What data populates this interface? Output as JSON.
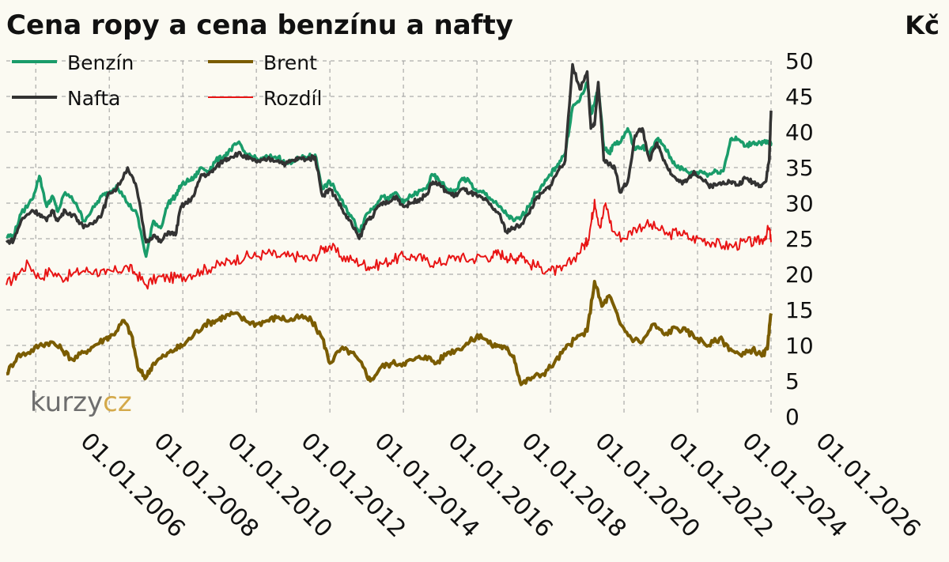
{
  "chart_data": {
    "type": "line",
    "title": "Cena ropy a cena benzínu a nafty",
    "ylabel": "Kč",
    "ylim": [
      0,
      50
    ],
    "yticks": [
      0,
      5,
      10,
      15,
      20,
      25,
      30,
      35,
      40,
      45,
      50
    ],
    "x_range": [
      2004.2,
      2025.0
    ],
    "xticks": [
      "01.01.2006",
      "01.01.2008",
      "01.01.2010",
      "01.01.2012",
      "01.01.2014",
      "01.01.2016",
      "01.01.2018",
      "01.01.2020",
      "01.01.2022",
      "01.01.2024",
      "01.01.2026"
    ],
    "grid": true,
    "legend_position": "top-left",
    "colors": {
      "Benzín": "#1a9c6a",
      "Nafta": "#333333",
      "Brent": "#7a5c00",
      "Rozdíl": "#e81414"
    },
    "series": [
      {
        "name": "Benzín",
        "x": [
          2004.2,
          2004.4,
          2004.6,
          2004.9,
          2005.1,
          2005.3,
          2005.45,
          2005.6,
          2005.8,
          2006.1,
          2006.3,
          2006.6,
          2006.8,
          2007.0,
          2007.2,
          2007.5,
          2007.75,
          2008.0,
          2008.2,
          2008.4,
          2008.6,
          2008.8,
          2008.95,
          2009.1,
          2009.3,
          2009.5,
          2009.7,
          2009.9,
          2010.1,
          2010.3,
          2010.5,
          2010.7,
          2010.9,
          2011.1,
          2011.3,
          2011.6,
          2011.8,
          2012.0,
          2012.2,
          2012.4,
          2012.6,
          2012.8,
          2013.0,
          2013.2,
          2013.4,
          2013.6,
          2013.8,
          2014.0,
          2014.2,
          2014.4,
          2014.6,
          2014.8,
          2015.0,
          2015.2,
          2015.4,
          2015.6,
          2015.8,
          2016.0,
          2016.2,
          2016.4,
          2016.6,
          2016.8,
          2017.0,
          2017.2,
          2017.4,
          2017.6,
          2017.8,
          2018.0,
          2018.2,
          2018.4,
          2018.6,
          2018.8,
          2019.0,
          2019.2,
          2019.4,
          2019.6,
          2019.8,
          2020.0,
          2020.1,
          2020.2,
          2020.3,
          2020.45,
          2020.6,
          2020.75,
          2020.9,
          2021.1,
          2021.3,
          2021.5,
          2021.7,
          2021.9,
          2022.1,
          2022.3,
          2022.5,
          2022.7,
          2022.9,
          2023.1,
          2023.3,
          2023.5,
          2023.7,
          2023.9,
          2024.1,
          2024.3,
          2024.5,
          2024.7,
          2024.85,
          2024.95,
          2025.0
        ],
        "y": [
          25.3,
          25.5,
          28.5,
          30.5,
          33.8,
          29.5,
          31.0,
          28.8,
          31.5,
          30.0,
          27.5,
          29.5,
          31.0,
          31.5,
          32.5,
          30.0,
          28.5,
          22.5,
          27.5,
          26.5,
          30.0,
          31.0,
          32.5,
          33.0,
          33.5,
          35.0,
          34.5,
          36.0,
          36.5,
          37.5,
          38.5,
          37.0,
          36.5,
          36.0,
          36.5,
          36.5,
          35.5,
          36.0,
          36.3,
          36.5,
          36.8,
          32.0,
          33.0,
          31.5,
          29.5,
          28.0,
          26.0,
          28.5,
          29.5,
          31.0,
          30.5,
          31.5,
          30.0,
          31.0,
          31.5,
          32.0,
          34.0,
          33.0,
          32.0,
          31.5,
          33.5,
          33.0,
          31.5,
          31.5,
          30.5,
          29.5,
          28.5,
          27.5,
          28.0,
          29.5,
          31.5,
          32.5,
          34.0,
          35.5,
          37.0,
          43.5,
          44.5,
          47.0,
          42.5,
          44.0,
          46.5,
          38.0,
          37.0,
          38.5,
          38.5,
          40.5,
          37.5,
          38.0,
          37.0,
          39.0,
          38.0,
          36.0,
          35.0,
          34.5,
          34.0,
          34.5,
          34.0,
          34.5,
          34.5,
          39.0,
          39.0,
          38.0,
          38.5,
          38.5,
          38.5,
          38.5,
          38.5
        ]
      },
      {
        "name": "Nafta",
        "x": [
          2004.2,
          2004.4,
          2004.6,
          2004.9,
          2005.1,
          2005.3,
          2005.45,
          2005.6,
          2005.8,
          2006.1,
          2006.3,
          2006.6,
          2006.8,
          2007.0,
          2007.2,
          2007.5,
          2007.75,
          2008.0,
          2008.2,
          2008.4,
          2008.6,
          2008.8,
          2008.95,
          2009.1,
          2009.3,
          2009.5,
          2009.7,
          2009.9,
          2010.1,
          2010.3,
          2010.5,
          2010.7,
          2010.9,
          2011.1,
          2011.3,
          2011.6,
          2011.8,
          2012.0,
          2012.2,
          2012.4,
          2012.6,
          2012.8,
          2013.0,
          2013.2,
          2013.4,
          2013.6,
          2013.8,
          2014.0,
          2014.2,
          2014.4,
          2014.6,
          2014.8,
          2015.0,
          2015.2,
          2015.4,
          2015.6,
          2015.8,
          2016.0,
          2016.2,
          2016.4,
          2016.6,
          2016.8,
          2017.0,
          2017.2,
          2017.4,
          2017.6,
          2017.8,
          2018.0,
          2018.2,
          2018.4,
          2018.6,
          2018.8,
          2019.0,
          2019.2,
          2019.4,
          2019.6,
          2019.8,
          2020.0,
          2020.1,
          2020.2,
          2020.3,
          2020.45,
          2020.6,
          2020.75,
          2020.9,
          2021.1,
          2021.3,
          2021.5,
          2021.7,
          2021.9,
          2022.1,
          2022.3,
          2022.5,
          2022.7,
          2022.9,
          2023.1,
          2023.3,
          2023.5,
          2023.7,
          2023.9,
          2024.1,
          2024.3,
          2024.5,
          2024.7,
          2024.85,
          2024.95,
          2025.0
        ],
        "y": [
          24.5,
          24.8,
          27.5,
          29.0,
          28.5,
          27.5,
          29.0,
          27.5,
          29.0,
          28.0,
          26.5,
          27.5,
          28.5,
          31.5,
          32.0,
          35.0,
          32.0,
          24.5,
          25.5,
          24.5,
          26.0,
          25.5,
          29.5,
          30.0,
          31.0,
          34.0,
          34.0,
          35.0,
          36.0,
          36.5,
          37.0,
          36.5,
          36.0,
          35.8,
          36.2,
          36.0,
          35.5,
          36.0,
          36.3,
          36.2,
          36.5,
          31.0,
          32.0,
          30.5,
          28.5,
          27.0,
          25.0,
          27.5,
          28.5,
          30.0,
          30.0,
          31.0,
          29.5,
          30.0,
          30.5,
          31.0,
          33.0,
          32.5,
          31.5,
          31.0,
          32.0,
          31.5,
          31.0,
          30.5,
          29.5,
          28.5,
          26.0,
          26.5,
          27.0,
          28.5,
          30.5,
          31.5,
          32.5,
          34.5,
          36.0,
          49.5,
          46.0,
          48.5,
          40.5,
          41.0,
          47.0,
          36.0,
          35.5,
          35.0,
          31.5,
          33.0,
          39.5,
          40.5,
          36.0,
          38.5,
          36.0,
          34.0,
          33.0,
          33.0,
          34.5,
          33.5,
          32.5,
          32.5,
          33.0,
          33.0,
          32.5,
          33.5,
          33.0,
          32.5,
          33.0,
          36.0,
          43.0
        ]
      },
      {
        "name": "Brent",
        "x": [
          2004.2,
          2004.5,
          2004.8,
          2005.1,
          2005.4,
          2005.7,
          2006.0,
          2006.3,
          2006.6,
          2006.9,
          2007.1,
          2007.4,
          2007.6,
          2007.8,
          2008.0,
          2008.2,
          2008.5,
          2008.8,
          2009.0,
          2009.3,
          2009.6,
          2009.9,
          2010.1,
          2010.4,
          2010.7,
          2011.0,
          2011.3,
          2011.6,
          2011.9,
          2012.2,
          2012.5,
          2012.8,
          2013.0,
          2013.3,
          2013.6,
          2013.9,
          2014.1,
          2014.4,
          2014.7,
          2015.0,
          2015.3,
          2015.6,
          2015.9,
          2016.2,
          2016.5,
          2016.8,
          2017.1,
          2017.4,
          2017.6,
          2017.8,
          2018.0,
          2018.2,
          2018.5,
          2018.8,
          2019.1,
          2019.4,
          2019.7,
          2020.0,
          2020.2,
          2020.4,
          2020.6,
          2020.9,
          2021.2,
          2021.5,
          2021.8,
          2022.1,
          2022.4,
          2022.7,
          2023.0,
          2023.3,
          2023.6,
          2023.9,
          2024.2,
          2024.5,
          2024.75,
          2024.9,
          2025.0
        ],
        "y": [
          6.0,
          8.5,
          9.0,
          10.0,
          10.5,
          9.5,
          8.0,
          9.0,
          10.0,
          11.0,
          11.5,
          13.5,
          11.5,
          6.5,
          5.5,
          7.5,
          8.5,
          9.5,
          10.0,
          11.5,
          13.0,
          13.5,
          14.0,
          14.5,
          13.5,
          13.0,
          13.5,
          14.0,
          13.5,
          14.0,
          13.5,
          11.0,
          7.5,
          9.5,
          9.0,
          7.0,
          5.0,
          7.0,
          7.5,
          7.5,
          8.0,
          8.5,
          7.5,
          9.0,
          9.5,
          10.5,
          11.5,
          10.0,
          10.0,
          9.5,
          8.5,
          4.5,
          5.5,
          6.0,
          7.5,
          9.5,
          11.0,
          12.0,
          19.0,
          15.5,
          17.0,
          13.0,
          11.0,
          10.5,
          13.0,
          11.5,
          12.5,
          12.0,
          11.0,
          10.0,
          11.0,
          9.5,
          8.5,
          9.5,
          8.5,
          9.5,
          14.5
        ]
      },
      {
        "name": "Rozdíl",
        "x": [
          2004.2,
          2004.5,
          2004.8,
          2005.1,
          2005.4,
          2005.7,
          2006.0,
          2006.3,
          2006.6,
          2006.9,
          2007.2,
          2007.5,
          2007.75,
          2008.0,
          2008.3,
          2008.6,
          2008.9,
          2009.2,
          2009.5,
          2009.8,
          2010.1,
          2010.4,
          2010.7,
          2011.0,
          2011.3,
          2011.6,
          2011.9,
          2012.2,
          2012.5,
          2012.8,
          2013.0,
          2013.3,
          2013.6,
          2013.9,
          2014.1,
          2014.4,
          2014.7,
          2015.0,
          2015.3,
          2015.6,
          2015.9,
          2016.2,
          2016.5,
          2016.8,
          2017.1,
          2017.4,
          2017.6,
          2017.8,
          2018.0,
          2018.2,
          2018.4,
          2018.7,
          2019.0,
          2019.3,
          2019.6,
          2019.9,
          2020.0,
          2020.1,
          2020.2,
          2020.35,
          2020.5,
          2020.7,
          2021.0,
          2021.3,
          2021.6,
          2021.9,
          2022.2,
          2022.5,
          2022.8,
          2023.1,
          2023.4,
          2023.7,
          2024.0,
          2024.3,
          2024.6,
          2024.8,
          2024.95,
          2025.0
        ],
        "y": [
          18.5,
          20.0,
          21.5,
          19.5,
          20.5,
          19.5,
          20.0,
          20.5,
          20.5,
          20.0,
          20.5,
          21.0,
          20.0,
          18.5,
          19.5,
          19.5,
          19.5,
          20.0,
          20.5,
          21.0,
          21.5,
          22.0,
          22.5,
          22.5,
          23.0,
          22.5,
          22.5,
          22.5,
          22.0,
          23.5,
          24.0,
          22.5,
          22.0,
          21.5,
          21.0,
          21.5,
          22.0,
          22.5,
          22.5,
          22.0,
          21.5,
          22.0,
          22.5,
          22.0,
          22.5,
          22.5,
          23.0,
          22.5,
          22.0,
          23.0,
          21.5,
          21.0,
          20.5,
          20.5,
          22.0,
          24.0,
          24.5,
          27.0,
          30.5,
          26.5,
          30.0,
          26.0,
          25.0,
          26.5,
          27.0,
          26.5,
          25.5,
          26.0,
          25.0,
          25.0,
          24.5,
          24.0,
          24.0,
          24.5,
          24.5,
          25.0,
          26.5,
          24.5
        ]
      }
    ]
  }
}
